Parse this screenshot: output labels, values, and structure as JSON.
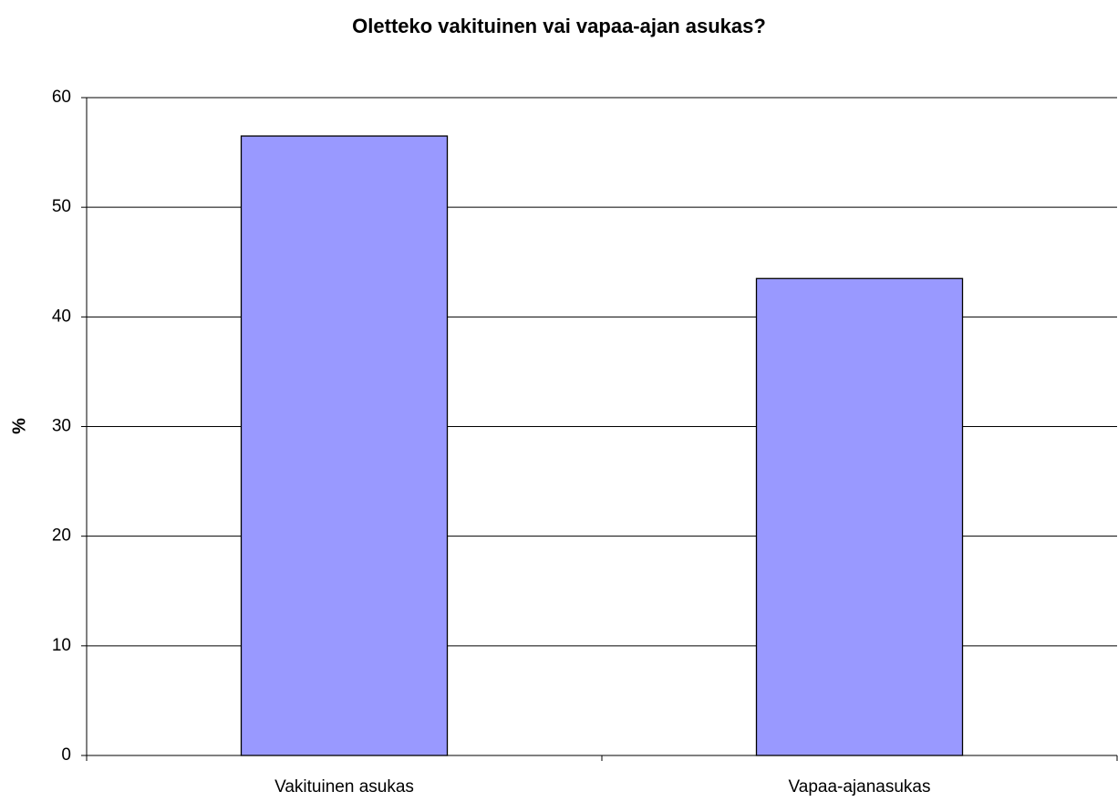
{
  "chart_data": {
    "type": "bar",
    "title": "Oletteko vakituinen vai vapaa-ajan asukas?",
    "y_label": "%",
    "categories": [
      "Vakituinen asukas",
      "Vapaa-ajanasukas"
    ],
    "values": [
      56.5,
      43.5
    ],
    "color": "#9999ff",
    "ylim": [
      0,
      60
    ],
    "yticks": [
      0,
      10,
      20,
      30,
      40,
      50,
      60
    ],
    "grid": true
  }
}
